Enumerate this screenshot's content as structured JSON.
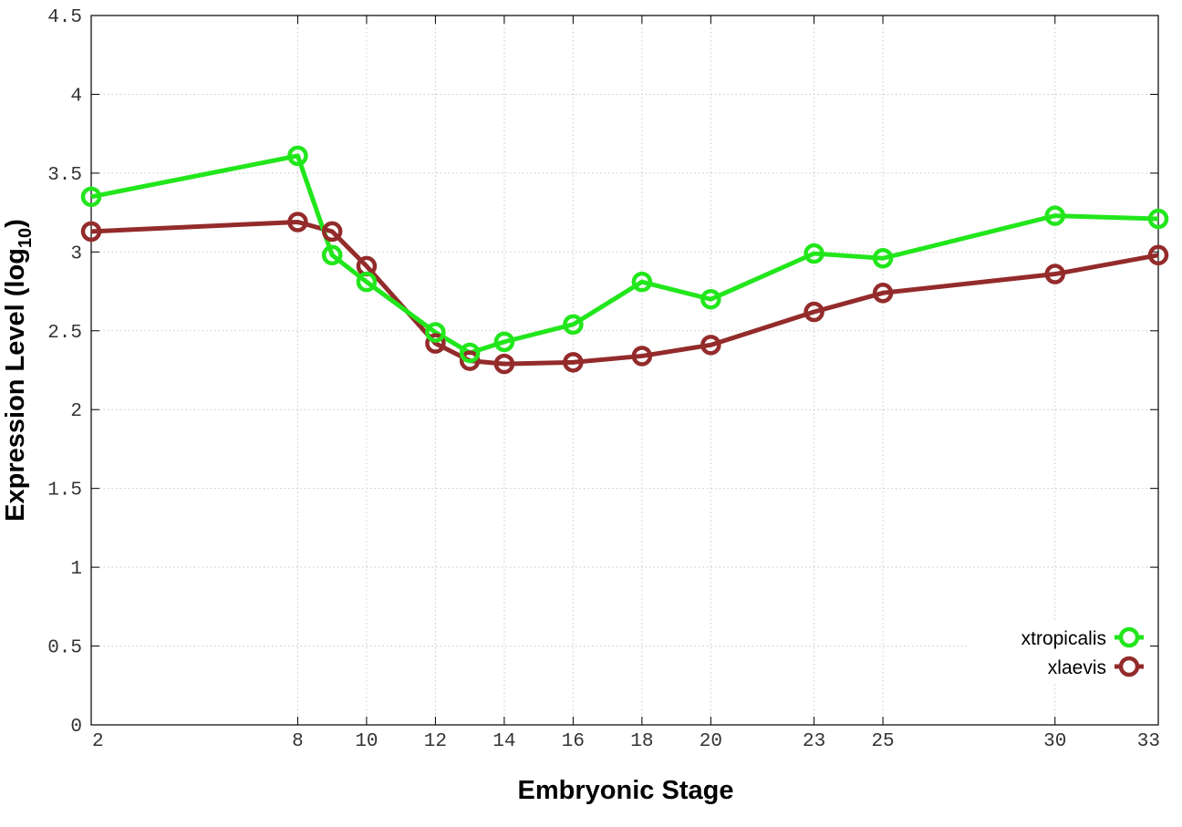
{
  "chart_data": {
    "type": "line",
    "title": "",
    "xlabel": "Embryonic Stage",
    "ylabel": "Expression Level (log",
    "ylabel_subscript": "10",
    "ylabel_close": ")",
    "x": [
      2,
      8,
      9,
      10,
      12,
      13,
      14,
      16,
      18,
      20,
      23,
      25,
      30,
      33
    ],
    "xticks": [
      2,
      8,
      10,
      12,
      14,
      16,
      18,
      20,
      23,
      25,
      30,
      33
    ],
    "xtick_labels": [
      "2",
      "8",
      "10",
      "12",
      "14",
      "16",
      "18",
      "20",
      "23",
      "25",
      "30",
      "33"
    ],
    "yticks": [
      0,
      0.5,
      1,
      1.5,
      2,
      2.5,
      3,
      3.5,
      4,
      4.5
    ],
    "ytick_labels": [
      "0",
      "0.5",
      "1",
      "1.5",
      "2",
      "2.5",
      "3",
      "3.5",
      "4",
      "4.5"
    ],
    "xlim": [
      2,
      33
    ],
    "ylim": [
      0,
      4.5
    ],
    "grid": true,
    "legend_position": "bottom-right",
    "series": [
      {
        "name": "xtropicalis",
        "color": "#22e61c",
        "values": [
          3.35,
          3.61,
          2.98,
          2.81,
          2.49,
          2.36,
          2.43,
          2.54,
          2.81,
          2.7,
          2.99,
          2.96,
          3.23,
          3.21
        ]
      },
      {
        "name": "xlaevis",
        "color": "#942b2b",
        "values": [
          3.13,
          3.19,
          3.13,
          2.91,
          2.42,
          2.31,
          2.29,
          2.3,
          2.34,
          2.41,
          2.62,
          2.74,
          2.86,
          2.98
        ]
      }
    ]
  }
}
